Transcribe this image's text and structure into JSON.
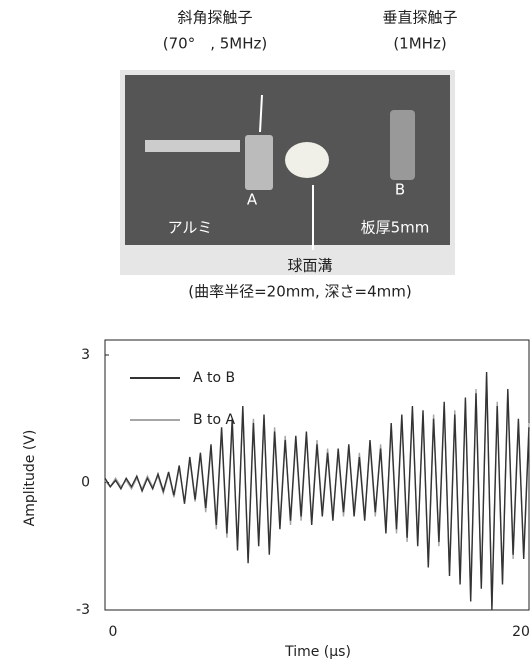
{
  "photo": {
    "angle_probe": "斜角探触子",
    "angle_probe_spec": "(70°　, 5MHz)",
    "normal_probe": "垂直探触子",
    "normal_probe_spec": "(1MHz)",
    "label_a": "A",
    "label_b": "B",
    "material": "アルミ",
    "thickness": "板厚5mm",
    "groove": "球面溝",
    "groove_spec": "(曲率半径=20mm,  深さ=4mm)"
  },
  "chart_data": {
    "type": "line",
    "xlabel": "Time (µs)",
    "ylabel": "Amplitude (V)",
    "xlim": [
      0,
      20
    ],
    "xticks": [
      0,
      20
    ],
    "ylim": [
      -3,
      3
    ],
    "yticks": [
      -3,
      0,
      3
    ],
    "legend": "upper left",
    "x": [
      0,
      0.25,
      0.5,
      0.75,
      1,
      1.25,
      1.5,
      1.75,
      2,
      2.25,
      2.5,
      2.75,
      3,
      3.25,
      3.5,
      3.75,
      4,
      4.25,
      4.5,
      4.75,
      5,
      5.25,
      5.5,
      5.75,
      6,
      6.25,
      6.5,
      6.75,
      7,
      7.25,
      7.5,
      7.75,
      8,
      8.25,
      8.5,
      8.75,
      9,
      9.25,
      9.5,
      9.75,
      10,
      10.25,
      10.5,
      10.75,
      11,
      11.25,
      11.5,
      11.75,
      12,
      12.25,
      12.5,
      12.75,
      13,
      13.25,
      13.5,
      13.75,
      14,
      14.25,
      14.5,
      14.75,
      15,
      15.25,
      15.5,
      15.75,
      16,
      16.25,
      16.5,
      16.75,
      17,
      17.25,
      17.5,
      17.75,
      18,
      18.25,
      18.5,
      18.75,
      19,
      19.25,
      19.5,
      19.75,
      20
    ],
    "series": [
      {
        "name": "A to B",
        "color": "#333333",
        "values": [
          0.1,
          -0.1,
          0.05,
          -0.15,
          0.1,
          -0.1,
          0.15,
          -0.2,
          0.1,
          -0.15,
          0.2,
          -0.2,
          0.25,
          -0.3,
          0.4,
          -0.5,
          0.6,
          -0.4,
          0.7,
          -0.6,
          0.9,
          -1.0,
          1.3,
          -1.2,
          1.5,
          -1.6,
          1.8,
          -1.9,
          1.4,
          -1.5,
          1.6,
          -1.7,
          1.2,
          -1.1,
          1.0,
          -0.9,
          1.1,
          -0.8,
          1.2,
          -1.0,
          0.9,
          -0.8,
          0.7,
          -0.9,
          0.8,
          -0.7,
          0.9,
          -0.8,
          0.6,
          -0.9,
          1.0,
          -0.7,
          0.8,
          -1.2,
          1.4,
          -1.1,
          1.6,
          -1.3,
          1.8,
          -1.5,
          1.7,
          -2.0,
          1.5,
          -1.4,
          1.9,
          -2.2,
          1.6,
          -2.4,
          2.0,
          -2.8,
          2.1,
          -2.5,
          2.6,
          -3.0,
          1.8,
          -2.4,
          2.2,
          -1.7,
          1.5,
          -1.8,
          1.3
        ]
      },
      {
        "name": "B to A",
        "color": "#a6a6a6",
        "values": [
          0.05,
          -0.1,
          0.1,
          -0.1,
          0.05,
          -0.15,
          0.1,
          -0.15,
          0.15,
          -0.1,
          0.15,
          -0.25,
          0.2,
          -0.35,
          0.35,
          -0.45,
          0.55,
          -0.45,
          0.65,
          -0.7,
          0.8,
          -1.1,
          1.2,
          -1.3,
          1.4,
          -1.5,
          1.7,
          -1.8,
          1.5,
          -1.4,
          1.5,
          -1.6,
          1.3,
          -1.0,
          1.1,
          -1.0,
          1.0,
          -0.9,
          1.1,
          -0.9,
          1.0,
          -0.7,
          0.8,
          -0.8,
          0.7,
          -0.8,
          0.8,
          -0.7,
          0.7,
          -0.8,
          0.9,
          -0.8,
          0.9,
          -1.1,
          1.3,
          -1.2,
          1.5,
          -1.4,
          1.7,
          -1.4,
          1.6,
          -1.9,
          1.6,
          -1.5,
          1.8,
          -2.1,
          1.7,
          -2.3,
          1.9,
          -2.7,
          2.2,
          -2.4,
          2.5,
          -2.9,
          1.9,
          -2.3,
          2.1,
          -1.8,
          1.4,
          -1.7,
          1.4
        ]
      }
    ]
  }
}
